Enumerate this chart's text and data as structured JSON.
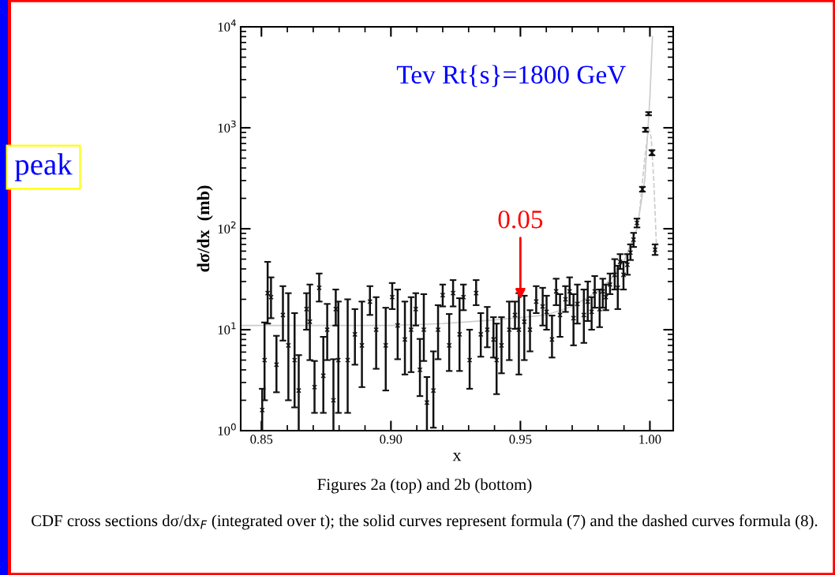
{
  "chart_data": {
    "type": "scatter",
    "xlabel": "x",
    "ylabel": "dσ/dx  (mb)",
    "xlim": [
      0.842,
      1.009
    ],
    "xticks": [
      {
        "value": 0.85,
        "label": "0.85"
      },
      {
        "value": 0.9,
        "label": "0.90"
      },
      {
        "value": 0.95,
        "label": "0.95"
      },
      {
        "value": 1.0,
        "label": "1.00"
      }
    ],
    "ylim": [
      1,
      10000
    ],
    "yticks": [
      {
        "value": 1,
        "label": "10$^{0}$"
      },
      {
        "value": 10,
        "label": "10$^{1}$"
      },
      {
        "value": 100,
        "label": "10$^{2}$"
      },
      {
        "value": 1000,
        "label": "10$^{3}$"
      },
      {
        "value": 10000,
        "label": "10$^{4}$"
      }
    ],
    "log": "y",
    "grid": false,
    "annotations": [
      "Tev Rt{s}=1800 GeV",
      {
        "text": "0.05",
        "x": 0.95,
        "y": 19
      },
      "peak",
      "Figures 2a (top) and 2b (bottom)",
      "CDF cross sections dσ/dx$_{F}$ (integrated over t); the solid curves represent formula (7) and the dashed curves formula (8)."
    ],
    "series": [
      {
        "color": "#111111",
        "marker": "cross",
        "x": [
          0.8503,
          0.8512,
          0.8524,
          0.8537,
          0.8558,
          0.8583,
          0.8604,
          0.8628,
          0.8644,
          0.8674,
          0.8687,
          0.8705,
          0.8723,
          0.8739,
          0.8754,
          0.8778,
          0.8787,
          0.8797,
          0.8833,
          0.8861,
          0.8888,
          0.8919,
          0.8943,
          0.898,
          0.9005,
          0.9026,
          0.9054,
          0.9078,
          0.9096,
          0.9112,
          0.9127,
          0.9139,
          0.9164,
          0.9182,
          0.92,
          0.9225,
          0.924,
          0.9265,
          0.928,
          0.9304,
          0.9329,
          0.9347,
          0.9372,
          0.9396,
          0.9408,
          0.9427,
          0.9457,
          0.9479,
          0.9494,
          0.9515,
          0.9537,
          0.9561,
          0.9586,
          0.9601,
          0.9622,
          0.9638,
          0.9653,
          0.9674,
          0.969,
          0.9705,
          0.972,
          0.9745,
          0.976,
          0.9775,
          0.9787,
          0.9806,
          0.9818,
          0.983,
          0.9846,
          0.9864,
          0.9876,
          0.9885,
          0.9898,
          0.9913,
          0.9925,
          0.9937,
          0.995,
          0.9971,
          0.9983,
          0.9995,
          1.0008,
          1.002
        ],
        "values": [
          1.6,
          5,
          23,
          21,
          4.5,
          14,
          7,
          5,
          2.5,
          16,
          12,
          2.7,
          26,
          3.5,
          10,
          2,
          16,
          5,
          5,
          9,
          7,
          19,
          10,
          7,
          21,
          11,
          8,
          10,
          16,
          4,
          10,
          1.9,
          2.5,
          10,
          22,
          7,
          23,
          9,
          21,
          5,
          23,
          9,
          10,
          8,
          5,
          7,
          10,
          14,
          10,
          12,
          10,
          19,
          17,
          15,
          8,
          24,
          14,
          20,
          24,
          13,
          18,
          14,
          19,
          15,
          24,
          16,
          24,
          21,
          28,
          35,
          26,
          47,
          35,
          44,
          58,
          78,
          114,
          246,
          953,
          1380,
          566,
          62
        ],
        "errors": [
          [
            1,
            2.6
          ],
          [
            2,
            11.8
          ],
          [
            11.5,
            47
          ],
          [
            13,
            33
          ],
          [
            2.4,
            8.7
          ],
          [
            7.8,
            27
          ],
          [
            2,
            23
          ],
          [
            1.7,
            14.6
          ],
          [
            1,
            5.6
          ],
          [
            10,
            23
          ],
          [
            5,
            28
          ],
          [
            1.5,
            4.9
          ],
          [
            19,
            36
          ],
          [
            1.5,
            8.5
          ],
          [
            5,
            18
          ],
          [
            1,
            5.1
          ],
          [
            11,
            25
          ],
          [
            1.5,
            19
          ],
          [
            1.5,
            20
          ],
          [
            4.5,
            16
          ],
          [
            2.7,
            19
          ],
          [
            14,
            27
          ],
          [
            4.1,
            21
          ],
          [
            2.5,
            16.5
          ],
          [
            16,
            29
          ],
          [
            5.1,
            25
          ],
          [
            3.6,
            19
          ],
          [
            3.8,
            21
          ],
          [
            11,
            23
          ],
          [
            2.2,
            8.1
          ],
          [
            4.9,
            22.5
          ],
          [
            1,
            3.4
          ],
          [
            1.07,
            6.1
          ],
          [
            5.1,
            17.5
          ],
          [
            17,
            28
          ],
          [
            3.9,
            14.3
          ],
          [
            17,
            31
          ],
          [
            3.9,
            20.5
          ],
          [
            15.6,
            28
          ],
          [
            2.6,
            10
          ],
          [
            17.5,
            31
          ],
          [
            5.4,
            14.6
          ],
          [
            6.7,
            16.8
          ],
          [
            5.3,
            13.3
          ],
          [
            2.3,
            11.5
          ],
          [
            3.7,
            13.3
          ],
          [
            5,
            19
          ],
          [
            10.2,
            19
          ],
          [
            3.6,
            23
          ],
          [
            5,
            21.7
          ],
          [
            6.1,
            15.6
          ],
          [
            14.6,
            27
          ],
          [
            11,
            26
          ],
          [
            10,
            21.7
          ],
          [
            5.3,
            13.8
          ],
          [
            17.5,
            32
          ],
          [
            8.5,
            22.5
          ],
          [
            15,
            27
          ],
          [
            17.5,
            33
          ],
          [
            7,
            22.5
          ],
          [
            11.5,
            28
          ],
          [
            7.4,
            25
          ],
          [
            12.2,
            30
          ],
          [
            10,
            21
          ],
          [
            16.5,
            34
          ],
          [
            10.6,
            25
          ],
          [
            16.5,
            32
          ],
          [
            15.6,
            28
          ],
          [
            22.5,
            36
          ],
          [
            25,
            50
          ],
          [
            16,
            43
          ],
          [
            40,
            56
          ],
          [
            25,
            47
          ],
          [
            35,
            56
          ],
          [
            49,
            70
          ],
          [
            66,
            91
          ],
          [
            103,
            126
          ],
          [
            233,
            260
          ],
          [
            911,
            1000
          ],
          [
            1330,
            1427
          ],
          [
            534,
            600
          ],
          [
            55,
            70
          ]
        ]
      },
      {
        "type": "line",
        "color": "#cccccc",
        "line_style": "solid",
        "x": [
          0.842,
          0.86,
          0.88,
          0.9,
          0.92,
          0.94,
          0.96,
          0.97,
          0.98,
          0.985,
          0.99,
          0.995,
          0.998,
          1.0,
          1.001
        ],
        "values": [
          11,
          11,
          11,
          11,
          11.5,
          12.5,
          14,
          17,
          24,
          32,
          48,
          100,
          300,
          2000,
          8000
        ]
      },
      {
        "type": "line",
        "color": "#cccccc",
        "line_style": "dashed",
        "x": [
          0.996,
          0.998,
          0.9995,
          1.0005,
          1.0015,
          1.0025
        ],
        "values": [
          150,
          500,
          1000,
          800,
          300,
          70
        ]
      }
    ]
  }
}
